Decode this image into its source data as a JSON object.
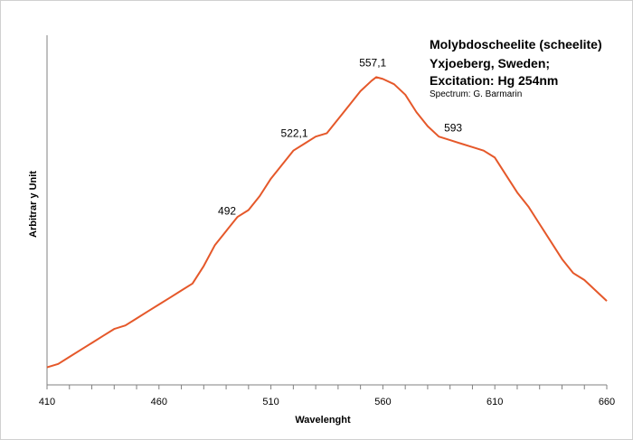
{
  "chart_data": {
    "type": "line",
    "title_lines": [
      "Molybdoscheelite (scheelite)",
      "Yxjoeberg, Sweden;",
      "Excitation:  Hg 254nm"
    ],
    "subtitle": "Spectrum: G. Barmarin",
    "xlabel": "Wavelenght",
    "ylabel": "Arbitrar y Unit",
    "xlim": [
      410,
      660
    ],
    "ylim": [
      0,
      100
    ],
    "x_ticks": [
      410,
      460,
      510,
      560,
      610,
      660
    ],
    "grid": false,
    "series_color": "#E5582A",
    "series": [
      {
        "x": [
          410,
          415,
          420,
          425,
          430,
          435,
          440,
          445,
          450,
          455,
          460,
          465,
          470,
          475,
          480,
          485,
          490,
          495,
          500,
          505,
          510,
          515,
          520,
          525,
          530,
          535,
          540,
          545,
          550,
          555,
          557,
          560,
          565,
          570,
          575,
          580,
          585,
          590,
          595,
          600,
          605,
          610,
          615,
          620,
          625,
          630,
          635,
          640,
          645,
          650,
          655,
          660
        ],
        "y": [
          5,
          6,
          8,
          10,
          12,
          14,
          16,
          17,
          19,
          21,
          23,
          25,
          27,
          29,
          34,
          40,
          44,
          48,
          50,
          54,
          59,
          63,
          67,
          69,
          71,
          72,
          76,
          80,
          84,
          87,
          88,
          87.5,
          86,
          83,
          78,
          74,
          71,
          70,
          69,
          68,
          67,
          65,
          60,
          55,
          51,
          46,
          41,
          36,
          32,
          30,
          27,
          24
        ]
      }
    ],
    "peak_labels": [
      {
        "x": 492,
        "text": "492"
      },
      {
        "x": 522.1,
        "text": "522,1"
      },
      {
        "x": 557.1,
        "text": "557,1"
      },
      {
        "x": 593,
        "text": "593"
      }
    ]
  }
}
